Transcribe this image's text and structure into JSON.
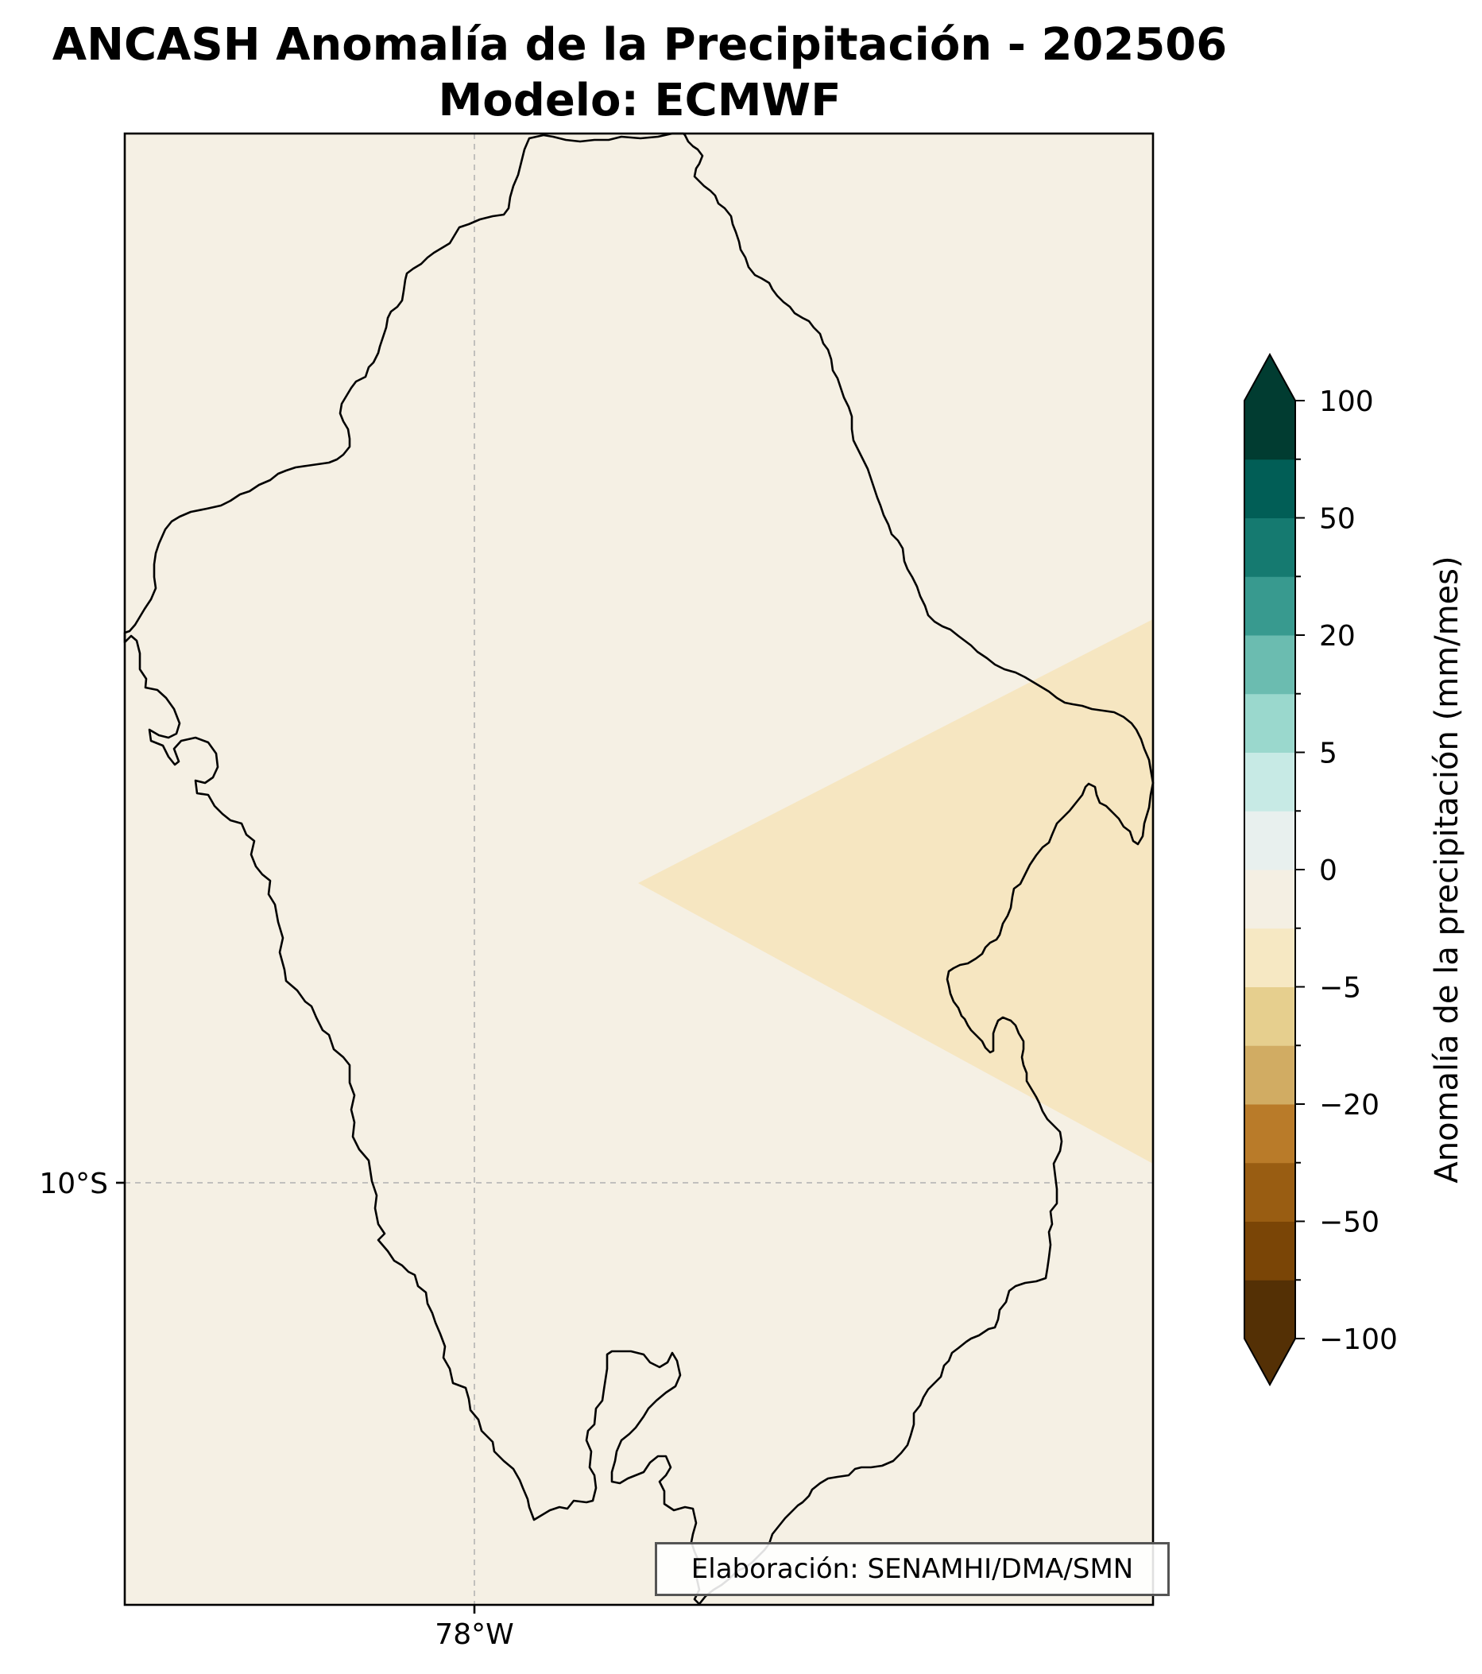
{
  "title": {
    "line1": "ANCASH Anomalía de la Precipitación - 202506",
    "line2": "Modelo: ECMWF"
  },
  "map": {
    "background_color": "#f5f0e4",
    "anomaly_fill_color": "#f6e6c1",
    "gridline_color": "#b0b0b0",
    "lon_label": "78°W",
    "lat_label": "10°S",
    "credit": "Elaboración: SENAMHI/DMA/SMN"
  },
  "colorbar": {
    "label": "Anomalía de la precipitación (mm/mes)",
    "tick_labels": [
      "100",
      "50",
      "20",
      "5",
      "0",
      "−5",
      "−20",
      "−50",
      "−100"
    ],
    "levels": [
      -100,
      -75,
      -50,
      -30,
      -20,
      -10,
      -5,
      -2,
      0,
      2,
      5,
      10,
      20,
      30,
      50,
      75,
      100
    ],
    "colors": [
      "#543005",
      "#7a4506",
      "#995d12",
      "#b97b29",
      "#d1ac63",
      "#e6cf8e",
      "#f6e8c3",
      "#f4efe3",
      "#e8f0ee",
      "#c7eae5",
      "#9ad8cd",
      "#6bbcb0",
      "#389a8f",
      "#157a70",
      "#015e56",
      "#013c31"
    ],
    "extend_under_color": "#543005",
    "extend_over_color": "#013c31"
  }
}
